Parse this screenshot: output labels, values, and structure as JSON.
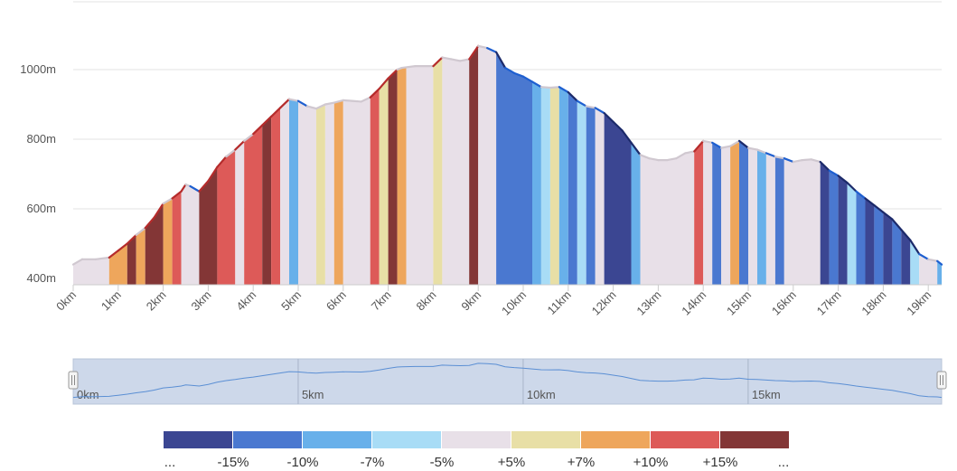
{
  "chart_data": {
    "type": "area",
    "title": "",
    "xlabel": "",
    "ylabel": "",
    "xlim": [
      0,
      19.3
    ],
    "ylim": [
      400,
      1100
    ],
    "y_ticks": [
      {
        "value": 400,
        "label": "400m"
      },
      {
        "value": 600,
        "label": "600m"
      },
      {
        "value": 800,
        "label": "800m"
      },
      {
        "value": 1000,
        "label": "1000m"
      }
    ],
    "x_ticks": [
      {
        "value": 0,
        "label": "0km"
      },
      {
        "value": 1,
        "label": "1km"
      },
      {
        "value": 2,
        "label": "2km"
      },
      {
        "value": 3,
        "label": "3km"
      },
      {
        "value": 4,
        "label": "4km"
      },
      {
        "value": 5,
        "label": "5km"
      },
      {
        "value": 6,
        "label": "6km"
      },
      {
        "value": 7,
        "label": "7km"
      },
      {
        "value": 8,
        "label": "8km"
      },
      {
        "value": 9,
        "label": "9km"
      },
      {
        "value": 10,
        "label": "10km"
      },
      {
        "value": 11,
        "label": "11km"
      },
      {
        "value": 12,
        "label": "12km"
      },
      {
        "value": 13,
        "label": "13km"
      },
      {
        "value": 14,
        "label": "14km"
      },
      {
        "value": 15,
        "label": "15km"
      },
      {
        "value": 16,
        "label": "16km"
      },
      {
        "value": 17,
        "label": "17km"
      },
      {
        "value": 18,
        "label": "18km"
      },
      {
        "value": 19,
        "label": "19km"
      }
    ],
    "grid": true,
    "elevation_profile": [
      [
        0,
        440
      ],
      [
        0.2,
        455
      ],
      [
        0.5,
        455
      ],
      [
        0.8,
        460
      ],
      [
        1.0,
        480
      ],
      [
        1.2,
        500
      ],
      [
        1.4,
        525
      ],
      [
        1.6,
        545
      ],
      [
        1.8,
        575
      ],
      [
        2.0,
        615
      ],
      [
        2.2,
        630
      ],
      [
        2.4,
        650
      ],
      [
        2.5,
        670
      ],
      [
        2.6,
        665
      ],
      [
        2.8,
        650
      ],
      [
        3.0,
        680
      ],
      [
        3.2,
        720
      ],
      [
        3.4,
        750
      ],
      [
        3.6,
        770
      ],
      [
        3.8,
        795
      ],
      [
        4.0,
        815
      ],
      [
        4.2,
        840
      ],
      [
        4.4,
        865
      ],
      [
        4.6,
        890
      ],
      [
        4.8,
        915
      ],
      [
        5.0,
        910
      ],
      [
        5.2,
        895
      ],
      [
        5.4,
        888
      ],
      [
        5.6,
        900
      ],
      [
        5.8,
        905
      ],
      [
        6.0,
        912
      ],
      [
        6.2,
        910
      ],
      [
        6.4,
        908
      ],
      [
        6.6,
        920
      ],
      [
        6.8,
        945
      ],
      [
        7.0,
        975
      ],
      [
        7.2,
        1000
      ],
      [
        7.3,
        1005
      ],
      [
        7.6,
        1010
      ],
      [
        8.0,
        1010
      ],
      [
        8.2,
        1035
      ],
      [
        8.4,
        1030
      ],
      [
        8.6,
        1025
      ],
      [
        8.8,
        1030
      ],
      [
        9.0,
        1068
      ],
      [
        9.2,
        1062
      ],
      [
        9.4,
        1050
      ],
      [
        9.6,
        1005
      ],
      [
        9.8,
        990
      ],
      [
        10.0,
        980
      ],
      [
        10.2,
        965
      ],
      [
        10.4,
        950
      ],
      [
        10.6,
        948
      ],
      [
        10.8,
        950
      ],
      [
        11.0,
        935
      ],
      [
        11.2,
        910
      ],
      [
        11.4,
        895
      ],
      [
        11.6,
        890
      ],
      [
        11.8,
        875
      ],
      [
        12.0,
        850
      ],
      [
        12.2,
        825
      ],
      [
        12.4,
        790
      ],
      [
        12.6,
        755
      ],
      [
        12.8,
        745
      ],
      [
        13.0,
        740
      ],
      [
        13.2,
        740
      ],
      [
        13.4,
        745
      ],
      [
        13.6,
        760
      ],
      [
        13.8,
        765
      ],
      [
        14.0,
        795
      ],
      [
        14.2,
        790
      ],
      [
        14.4,
        775
      ],
      [
        14.6,
        780
      ],
      [
        14.8,
        795
      ],
      [
        15.0,
        775
      ],
      [
        15.2,
        770
      ],
      [
        15.4,
        760
      ],
      [
        15.6,
        750
      ],
      [
        15.8,
        745
      ],
      [
        16.0,
        735
      ],
      [
        16.2,
        740
      ],
      [
        16.4,
        742
      ],
      [
        16.6,
        735
      ],
      [
        16.8,
        710
      ],
      [
        17.0,
        695
      ],
      [
        17.2,
        675
      ],
      [
        17.4,
        650
      ],
      [
        17.6,
        630
      ],
      [
        17.8,
        610
      ],
      [
        18.0,
        590
      ],
      [
        18.2,
        570
      ],
      [
        18.4,
        540
      ],
      [
        18.6,
        510
      ],
      [
        18.8,
        470
      ],
      [
        19.0,
        455
      ],
      [
        19.2,
        450
      ],
      [
        19.3,
        440
      ]
    ],
    "slope_segments": [
      {
        "x0": 0.0,
        "x1": 0.8,
        "cls": "-5/+5"
      },
      {
        "x0": 0.8,
        "x1": 1.2,
        "cls": "+7/+10"
      },
      {
        "x0": 1.2,
        "x1": 1.4,
        "cls": "≥+15"
      },
      {
        "x0": 1.4,
        "x1": 1.6,
        "cls": "+7/+10"
      },
      {
        "x0": 1.6,
        "x1": 2.0,
        "cls": "≥+15"
      },
      {
        "x0": 2.0,
        "x1": 2.2,
        "cls": "+7/+10"
      },
      {
        "x0": 2.2,
        "x1": 2.4,
        "cls": "+10/+15"
      },
      {
        "x0": 2.4,
        "x1": 2.8,
        "cls": "-5/+5"
      },
      {
        "x0": 2.8,
        "x1": 3.2,
        "cls": "≥+15"
      },
      {
        "x0": 3.2,
        "x1": 3.6,
        "cls": "+10/+15"
      },
      {
        "x0": 3.6,
        "x1": 3.8,
        "cls": "-5/+5"
      },
      {
        "x0": 3.8,
        "x1": 4.2,
        "cls": "+10/+15"
      },
      {
        "x0": 4.2,
        "x1": 4.4,
        "cls": "≥+15"
      },
      {
        "x0": 4.4,
        "x1": 4.6,
        "cls": "+10/+15"
      },
      {
        "x0": 4.6,
        "x1": 4.8,
        "cls": "-5/+5"
      },
      {
        "x0": 4.8,
        "x1": 5.0,
        "cls": "-10/-7"
      },
      {
        "x0": 5.0,
        "x1": 5.4,
        "cls": "-5/+5"
      },
      {
        "x0": 5.4,
        "x1": 5.6,
        "cls": "+5/+7"
      },
      {
        "x0": 5.6,
        "x1": 5.8,
        "cls": "-5/+5"
      },
      {
        "x0": 5.8,
        "x1": 6.0,
        "cls": "+7/+10"
      },
      {
        "x0": 6.0,
        "x1": 6.6,
        "cls": "-5/+5"
      },
      {
        "x0": 6.6,
        "x1": 6.8,
        "cls": "+10/+15"
      },
      {
        "x0": 6.8,
        "x1": 7.0,
        "cls": "+5/+7"
      },
      {
        "x0": 7.0,
        "x1": 7.2,
        "cls": "≥+15"
      },
      {
        "x0": 7.2,
        "x1": 7.4,
        "cls": "+7/+10"
      },
      {
        "x0": 7.4,
        "x1": 8.0,
        "cls": "-5/+5"
      },
      {
        "x0": 8.0,
        "x1": 8.2,
        "cls": "+5/+7"
      },
      {
        "x0": 8.2,
        "x1": 8.8,
        "cls": "-5/+5"
      },
      {
        "x0": 8.8,
        "x1": 9.0,
        "cls": "≥+15"
      },
      {
        "x0": 9.0,
        "x1": 9.4,
        "cls": "-5/+5"
      },
      {
        "x0": 9.4,
        "x1": 10.2,
        "cls": "-15/-10"
      },
      {
        "x0": 10.2,
        "x1": 10.4,
        "cls": "-10/-7"
      },
      {
        "x0": 10.4,
        "x1": 10.6,
        "cls": "-7/-5"
      },
      {
        "x0": 10.6,
        "x1": 10.8,
        "cls": "+5/+7"
      },
      {
        "x0": 10.8,
        "x1": 11.0,
        "cls": "-10/-7"
      },
      {
        "x0": 11.0,
        "x1": 11.2,
        "cls": "-15/-10"
      },
      {
        "x0": 11.2,
        "x1": 11.4,
        "cls": "-7/-5"
      },
      {
        "x0": 11.4,
        "x1": 11.6,
        "cls": "-15/-10"
      },
      {
        "x0": 11.6,
        "x1": 11.8,
        "cls": "-5/+5"
      },
      {
        "x0": 11.8,
        "x1": 12.4,
        "cls": "≤-15"
      },
      {
        "x0": 12.4,
        "x1": 12.6,
        "cls": "-10/-7"
      },
      {
        "x0": 12.6,
        "x1": 13.8,
        "cls": "-5/+5"
      },
      {
        "x0": 13.8,
        "x1": 14.0,
        "cls": "+10/+15"
      },
      {
        "x0": 14.0,
        "x1": 14.2,
        "cls": "-5/+5"
      },
      {
        "x0": 14.2,
        "x1": 14.4,
        "cls": "-15/-10"
      },
      {
        "x0": 14.4,
        "x1": 14.6,
        "cls": "-5/+5"
      },
      {
        "x0": 14.6,
        "x1": 14.8,
        "cls": "+7/+10"
      },
      {
        "x0": 14.8,
        "x1": 15.0,
        "cls": "-15/-10"
      },
      {
        "x0": 15.0,
        "x1": 15.2,
        "cls": "-5/+5"
      },
      {
        "x0": 15.2,
        "x1": 15.4,
        "cls": "-10/-7"
      },
      {
        "x0": 15.4,
        "x1": 15.6,
        "cls": "-5/+5"
      },
      {
        "x0": 15.6,
        "x1": 15.8,
        "cls": "-15/-10"
      },
      {
        "x0": 15.8,
        "x1": 16.6,
        "cls": "-5/+5"
      },
      {
        "x0": 16.6,
        "x1": 16.8,
        "cls": "≤-15"
      },
      {
        "x0": 16.8,
        "x1": 17.0,
        "cls": "-15/-10"
      },
      {
        "x0": 17.0,
        "x1": 17.2,
        "cls": "≤-15"
      },
      {
        "x0": 17.2,
        "x1": 17.4,
        "cls": "-7/-5"
      },
      {
        "x0": 17.4,
        "x1": 17.6,
        "cls": "-15/-10"
      },
      {
        "x0": 17.6,
        "x1": 17.8,
        "cls": "≤-15"
      },
      {
        "x0": 17.8,
        "x1": 18.0,
        "cls": "-15/-10"
      },
      {
        "x0": 18.0,
        "x1": 18.2,
        "cls": "≤-15"
      },
      {
        "x0": 18.2,
        "x1": 18.4,
        "cls": "-15/-10"
      },
      {
        "x0": 18.4,
        "x1": 18.6,
        "cls": "≤-15"
      },
      {
        "x0": 18.6,
        "x1": 18.8,
        "cls": "-7/-5"
      },
      {
        "x0": 18.8,
        "x1": 19.2,
        "cls": "-5/+5"
      },
      {
        "x0": 19.2,
        "x1": 19.3,
        "cls": "-10/-7"
      }
    ],
    "legend": {
      "colors": {
        "≤-15": "#3b4692",
        "-15/-10": "#4a78d0",
        "-10/-7": "#68b0ea",
        "-7/-5": "#a8dcf6",
        "-5/+5": "#e8e0e8",
        "+5/+7": "#e8dfa6",
        "+7/+10": "#eea65c",
        "+10/+15": "#dd5a58",
        "≥+15": "#833636"
      },
      "order": [
        "≤-15",
        "-15/-10",
        "-10/-7",
        "-7/-5",
        "-5/+5",
        "+5/+7",
        "+7/+10",
        "+10/+15",
        "≥+15"
      ],
      "boundary_labels": [
        "...",
        "-15%",
        "-10%",
        "-7%",
        "-5%",
        "+5%",
        "+7%",
        "+10%",
        "+15%",
        "..."
      ]
    },
    "navigator": {
      "range_start": 0,
      "range_end": 19.3,
      "labels": [
        {
          "value": 0,
          "label": "0km"
        },
        {
          "value": 5,
          "label": "5km"
        },
        {
          "value": 10,
          "label": "10km"
        },
        {
          "value": 15,
          "label": "15km"
        }
      ]
    },
    "colors": {
      "outline_dark": "#1c2a6a",
      "outline_light": "#1e5fd0",
      "outline_red": "#b52b2b",
      "grid": "#e3e3e3",
      "axis": "#cccccc",
      "navigator_fill": "#cdd8ea",
      "navigator_line": "#5b8fd4"
    }
  }
}
